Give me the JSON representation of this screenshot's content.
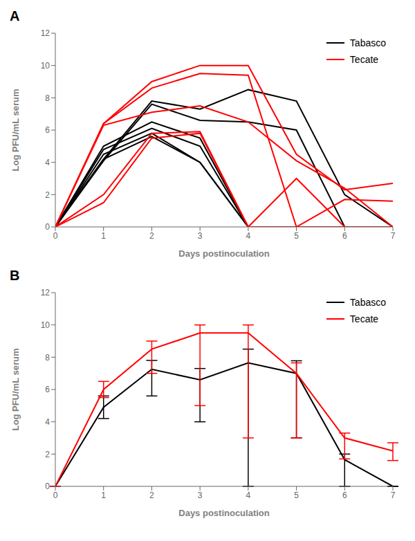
{
  "chart_data": [
    {
      "type": "line",
      "title": "A",
      "x": [
        0,
        1,
        2,
        3,
        4,
        5,
        6,
        7
      ],
      "xlim": [
        0,
        7
      ],
      "xticks": [
        0,
        1,
        2,
        3,
        4,
        5,
        6,
        7
      ],
      "ylim": [
        0,
        12
      ],
      "yticks": [
        0,
        2,
        4,
        6,
        8,
        10,
        12
      ],
      "xlabel": "Days postinoculation",
      "ylabel": "Log PFU/mL serum",
      "grid": false,
      "legend": "upper right",
      "series": [
        {
          "name": "Tabasco",
          "color": "#000000",
          "values": [
            0,
            4.2,
            7.8,
            7.3,
            8.5,
            7.8,
            2.0,
            0.0
          ]
        },
        {
          "name": "Tabasco",
          "color": "#000000",
          "values": [
            0,
            4.1,
            7.6,
            6.6,
            6.5,
            6.0,
            0.0,
            0.0
          ]
        },
        {
          "name": "Tabasco",
          "color": "#000000",
          "values": [
            0,
            5.0,
            6.5,
            5.5,
            0.0,
            0.0,
            0.0,
            0.0
          ]
        },
        {
          "name": "Tabasco",
          "color": "#000000",
          "values": [
            0,
            4.8,
            6.1,
            5.0,
            0.0,
            0.0,
            0.0,
            0.0
          ]
        },
        {
          "name": "Tabasco",
          "color": "#000000",
          "values": [
            0,
            4.5,
            5.8,
            4.0,
            0.0,
            0.0,
            0.0,
            0.0
          ]
        },
        {
          "name": "Tabasco",
          "color": "#000000",
          "values": [
            0,
            4.2,
            5.6,
            4.0,
            0.0,
            0.0,
            0.0,
            0.0
          ]
        },
        {
          "name": "Tecate",
          "color": "#ff0000",
          "values": [
            0,
            6.4,
            9.0,
            10.0,
            10.0,
            4.5,
            2.3,
            2.7
          ]
        },
        {
          "name": "Tecate",
          "color": "#ff0000",
          "values": [
            0,
            6.4,
            8.6,
            9.5,
            9.4,
            0.0,
            1.7,
            1.6
          ]
        },
        {
          "name": "Tecate",
          "color": "#ff0000",
          "values": [
            0,
            6.3,
            7.1,
            7.5,
            6.5,
            4.1,
            2.4,
            0.0
          ]
        },
        {
          "name": "Tecate",
          "color": "#ff0000",
          "values": [
            0,
            2.0,
            5.8,
            5.9,
            0.0,
            0.0,
            0.0,
            0.0
          ]
        },
        {
          "name": "Tecate",
          "color": "#ff0000",
          "values": [
            0,
            1.5,
            5.5,
            5.8,
            0.0,
            3.0,
            0.0,
            0.0
          ]
        }
      ]
    },
    {
      "type": "line",
      "title": "B",
      "x": [
        0,
        1,
        2,
        3,
        4,
        5,
        6,
        7
      ],
      "xlim": [
        0,
        7
      ],
      "xticks": [
        0,
        1,
        2,
        3,
        4,
        5,
        6,
        7
      ],
      "ylim": [
        0,
        12
      ],
      "yticks": [
        0,
        2,
        4,
        6,
        8,
        10,
        12
      ],
      "xlabel": "Days postinoculation",
      "ylabel": "Log PFU/mL serum",
      "grid": false,
      "legend": "upper right",
      "series": [
        {
          "name": "Tabasco",
          "color": "#000000",
          "values": [
            0,
            4.9,
            7.25,
            6.6,
            7.65,
            7.0,
            1.65,
            0.0
          ],
          "err_low": [
            0,
            0.7,
            1.65,
            2.6,
            7.65,
            4.0,
            1.65,
            0.0
          ],
          "err_high": [
            0,
            0.7,
            0.55,
            0.7,
            0.85,
            0.78,
            0.35,
            0.0
          ]
        },
        {
          "name": "Tecate",
          "color": "#ff0000",
          "values": [
            0,
            6.0,
            8.5,
            9.5,
            9.5,
            7.0,
            3.0,
            2.2
          ],
          "err_low": [
            0,
            0.5,
            1.5,
            4.5,
            6.5,
            4.0,
            1.3,
            0.6
          ],
          "err_high": [
            0,
            0.5,
            0.5,
            0.5,
            0.5,
            0.65,
            0.3,
            0.5
          ]
        }
      ]
    }
  ]
}
